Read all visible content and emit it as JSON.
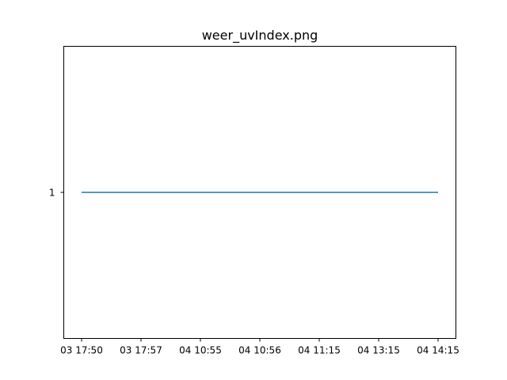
{
  "chart_data": {
    "type": "line",
    "title": "weer_uvIndex.png",
    "xlabel": "",
    "ylabel": "",
    "categories": [
      "03 17:50",
      "03 17:57",
      "04 10:55",
      "04 10:56",
      "04 11:15",
      "04 13:15",
      "04 14:15"
    ],
    "series": [
      {
        "values": [
          1,
          1,
          1,
          1,
          1,
          1,
          1
        ],
        "color": "#1f77b4"
      }
    ],
    "yticks": [
      1
    ],
    "ytick_labels": [
      "1"
    ],
    "ylim": [
      0.945,
      1.055
    ],
    "grid": false
  }
}
